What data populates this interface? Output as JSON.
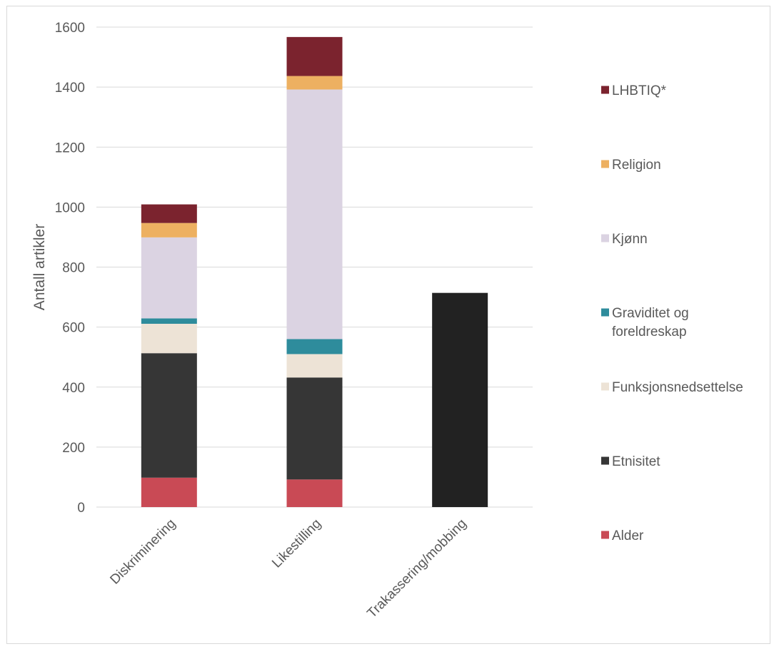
{
  "chart_data": {
    "type": "bar",
    "stacked": true,
    "title": "",
    "xlabel": "",
    "ylabel": "Antall artikler",
    "ylim": [
      0,
      1600
    ],
    "yticks": [
      0,
      200,
      400,
      600,
      800,
      1000,
      1200,
      1400,
      1600
    ],
    "grid": true,
    "legend_position": "right",
    "categories": [
      "Diskriminering",
      "Likestilling",
      "Trakassering/mobbing"
    ],
    "series": [
      {
        "name": "Alder",
        "color": "#c94a55",
        "values": [
          98,
          92,
          0
        ]
      },
      {
        "name": "Etnisitet",
        "color": "#363636",
        "values": [
          415,
          340,
          0
        ]
      },
      {
        "name": "Funksjonsnedsettelse",
        "color": "#ede3d6",
        "values": [
          98,
          78,
          0
        ]
      },
      {
        "name": "Graviditet og foreldreskap",
        "color": "#2e8c9c",
        "values": [
          18,
          50,
          0
        ]
      },
      {
        "name": "Kjønn",
        "color": "#dbd3e2",
        "values": [
          270,
          832,
          0
        ]
      },
      {
        "name": "Religion",
        "color": "#edb061",
        "values": [
          48,
          45,
          0
        ]
      },
      {
        "name": "LHBTIQ*",
        "color": "#7b232e",
        "values": [
          62,
          130,
          0
        ]
      }
    ],
    "standalone": [
      {
        "category": "Trakassering/mobbing",
        "color": "#222222",
        "value": 714
      }
    ],
    "legend_order": [
      "LHBTIQ*",
      "Religion",
      "Kjønn",
      "Graviditet og foreldreskap",
      "Funksjonsnedsettelse",
      "Etnisitet",
      "Alder"
    ],
    "legend_lines": {
      "Graviditet og foreldreskap": [
        "Graviditet og",
        "foreldreskap"
      ]
    }
  }
}
